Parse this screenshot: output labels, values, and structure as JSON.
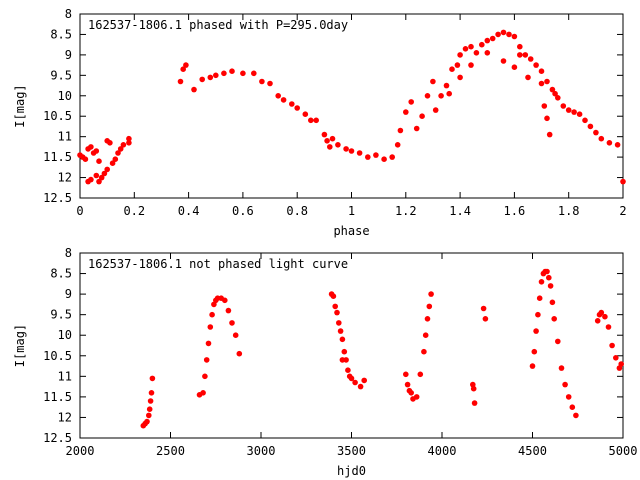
{
  "chart_data": [
    {
      "type": "scatter",
      "title": "162537-1806.1 phased with P=295.0day",
      "xlabel": "phase",
      "ylabel": "I[mag]",
      "xlim": [
        0,
        2
      ],
      "ylim": [
        12.5,
        8
      ],
      "y_inverted": true,
      "grid": false,
      "xticks": [
        "0",
        "0.2",
        "0.4",
        "0.6",
        "0.8",
        "1",
        "1.2",
        "1.4",
        "1.6",
        "1.8",
        "2"
      ],
      "yticks": [
        "8",
        "8.5",
        "9",
        "9.5",
        "10",
        "10.5",
        "11",
        "11.5",
        "12",
        "12.5"
      ],
      "marker_color": "#ff0000",
      "series": [
        {
          "points": [
            [
              0.0,
              11.45
            ],
            [
              0.01,
              11.5
            ],
            [
              0.02,
              11.55
            ],
            [
              0.03,
              11.3
            ],
            [
              0.04,
              11.25
            ],
            [
              0.05,
              11.4
            ],
            [
              0.06,
              11.35
            ],
            [
              0.07,
              11.6
            ],
            [
              0.03,
              12.1
            ],
            [
              0.04,
              12.05
            ],
            [
              0.06,
              11.95
            ],
            [
              0.07,
              12.1
            ],
            [
              0.08,
              12.0
            ],
            [
              0.09,
              11.9
            ],
            [
              0.1,
              11.8
            ],
            [
              0.1,
              11.1
            ],
            [
              0.11,
              11.15
            ],
            [
              0.12,
              11.65
            ],
            [
              0.13,
              11.55
            ],
            [
              0.14,
              11.4
            ],
            [
              0.15,
              11.3
            ],
            [
              0.16,
              11.2
            ],
            [
              0.18,
              11.05
            ],
            [
              0.18,
              11.15
            ],
            [
              0.37,
              9.65
            ],
            [
              0.38,
              9.35
            ],
            [
              0.39,
              9.25
            ],
            [
              0.42,
              9.85
            ],
            [
              0.45,
              9.6
            ],
            [
              0.48,
              9.55
            ],
            [
              0.5,
              9.5
            ],
            [
              0.53,
              9.45
            ],
            [
              0.56,
              9.4
            ],
            [
              0.6,
              9.45
            ],
            [
              0.64,
              9.45
            ],
            [
              0.67,
              9.65
            ],
            [
              0.7,
              9.7
            ],
            [
              0.73,
              10.0
            ],
            [
              0.75,
              10.1
            ],
            [
              0.78,
              10.2
            ],
            [
              0.8,
              10.3
            ],
            [
              0.83,
              10.45
            ],
            [
              0.85,
              10.6
            ],
            [
              0.87,
              10.6
            ],
            [
              0.9,
              10.95
            ],
            [
              0.91,
              11.1
            ],
            [
              0.92,
              11.25
            ],
            [
              0.93,
              11.05
            ],
            [
              0.95,
              11.2
            ],
            [
              0.98,
              11.3
            ],
            [
              1.0,
              11.35
            ],
            [
              1.03,
              11.4
            ],
            [
              1.06,
              11.5
            ],
            [
              1.09,
              11.45
            ],
            [
              1.12,
              11.55
            ],
            [
              1.15,
              11.5
            ],
            [
              1.17,
              11.2
            ],
            [
              1.18,
              10.85
            ],
            [
              1.2,
              10.4
            ],
            [
              1.22,
              10.15
            ],
            [
              1.24,
              10.8
            ],
            [
              1.26,
              10.5
            ],
            [
              1.28,
              10.0
            ],
            [
              1.3,
              9.65
            ],
            [
              1.31,
              10.35
            ],
            [
              1.33,
              10.0
            ],
            [
              1.35,
              9.75
            ],
            [
              1.37,
              9.35
            ],
            [
              1.39,
              9.25
            ],
            [
              1.4,
              9.0
            ],
            [
              1.42,
              8.85
            ],
            [
              1.44,
              8.8
            ],
            [
              1.46,
              8.95
            ],
            [
              1.48,
              8.75
            ],
            [
              1.5,
              8.65
            ],
            [
              1.52,
              8.6
            ],
            [
              1.54,
              8.5
            ],
            [
              1.56,
              8.45
            ],
            [
              1.58,
              8.5
            ],
            [
              1.6,
              8.55
            ],
            [
              1.62,
              8.8
            ],
            [
              1.64,
              9.0
            ],
            [
              1.66,
              9.1
            ],
            [
              1.68,
              9.25
            ],
            [
              1.7,
              9.4
            ],
            [
              1.72,
              9.65
            ],
            [
              1.74,
              9.85
            ],
            [
              1.76,
              10.05
            ],
            [
              1.78,
              10.25
            ],
            [
              1.8,
              10.35
            ],
            [
              1.82,
              10.4
            ],
            [
              1.84,
              10.45
            ],
            [
              1.86,
              10.6
            ],
            [
              1.88,
              10.75
            ],
            [
              1.9,
              10.9
            ],
            [
              1.92,
              11.05
            ],
            [
              1.95,
              11.15
            ],
            [
              1.98,
              11.2
            ],
            [
              2.0,
              12.1
            ],
            [
              1.5,
              8.95
            ],
            [
              1.56,
              9.15
            ],
            [
              1.6,
              9.3
            ],
            [
              1.65,
              9.55
            ],
            [
              1.7,
              9.7
            ],
            [
              1.71,
              10.25
            ],
            [
              1.72,
              10.55
            ],
            [
              1.73,
              10.95
            ],
            [
              1.36,
              9.95
            ],
            [
              1.4,
              9.55
            ],
            [
              1.44,
              9.25
            ],
            [
              1.62,
              9.0
            ],
            [
              1.75,
              9.95
            ]
          ]
        }
      ]
    },
    {
      "type": "scatter",
      "title": "162537-1806.1 not phased light curve",
      "xlabel": "hjd0",
      "ylabel": "I[mag]",
      "xlim": [
        2000,
        5000
      ],
      "ylim": [
        12.5,
        8
      ],
      "y_inverted": true,
      "grid": false,
      "xticks": [
        "2000",
        "2500",
        "3000",
        "3500",
        "4000",
        "4500",
        "5000"
      ],
      "yticks": [
        "8",
        "8.5",
        "9",
        "9.5",
        "10",
        "10.5",
        "11",
        "11.5",
        "12",
        "12.5"
      ],
      "marker_color": "#ff0000",
      "series": [
        {
          "points": [
            [
              2350,
              12.2
            ],
            [
              2360,
              12.15
            ],
            [
              2370,
              12.1
            ],
            [
              2380,
              11.95
            ],
            [
              2385,
              11.8
            ],
            [
              2390,
              11.6
            ],
            [
              2395,
              11.4
            ],
            [
              2400,
              11.05
            ],
            [
              2660,
              11.45
            ],
            [
              2680,
              11.4
            ],
            [
              2690,
              11.0
            ],
            [
              2700,
              10.6
            ],
            [
              2710,
              10.2
            ],
            [
              2720,
              9.8
            ],
            [
              2730,
              9.5
            ],
            [
              2740,
              9.25
            ],
            [
              2750,
              9.15
            ],
            [
              2760,
              9.1
            ],
            [
              2780,
              9.1
            ],
            [
              2800,
              9.15
            ],
            [
              2820,
              9.4
            ],
            [
              2840,
              9.7
            ],
            [
              2860,
              10.0
            ],
            [
              2880,
              10.45
            ],
            [
              3390,
              9.0
            ],
            [
              3400,
              9.05
            ],
            [
              3410,
              9.3
            ],
            [
              3420,
              9.45
            ],
            [
              3430,
              9.7
            ],
            [
              3440,
              9.9
            ],
            [
              3450,
              10.1
            ],
            [
              3460,
              10.4
            ],
            [
              3470,
              10.6
            ],
            [
              3480,
              10.85
            ],
            [
              3490,
              11.0
            ],
            [
              3500,
              11.05
            ],
            [
              3520,
              11.15
            ],
            [
              3550,
              11.25
            ],
            [
              3570,
              11.1
            ],
            [
              3450,
              10.6
            ],
            [
              3800,
              10.95
            ],
            [
              3810,
              11.2
            ],
            [
              3820,
              11.35
            ],
            [
              3830,
              11.4
            ],
            [
              3840,
              11.55
            ],
            [
              3860,
              11.5
            ],
            [
              3880,
              10.95
            ],
            [
              3900,
              10.4
            ],
            [
              3910,
              10.0
            ],
            [
              3920,
              9.6
            ],
            [
              3930,
              9.3
            ],
            [
              3940,
              9.0
            ],
            [
              4170,
              11.2
            ],
            [
              4175,
              11.3
            ],
            [
              4180,
              11.65
            ],
            [
              4230,
              9.35
            ],
            [
              4240,
              9.6
            ],
            [
              4500,
              10.75
            ],
            [
              4510,
              10.4
            ],
            [
              4520,
              9.9
            ],
            [
              4530,
              9.5
            ],
            [
              4540,
              9.1
            ],
            [
              4550,
              8.7
            ],
            [
              4560,
              8.5
            ],
            [
              4570,
              8.45
            ],
            [
              4580,
              8.45
            ],
            [
              4590,
              8.6
            ],
            [
              4600,
              8.8
            ],
            [
              4610,
              9.2
            ],
            [
              4620,
              9.6
            ],
            [
              4640,
              10.15
            ],
            [
              4660,
              10.8
            ],
            [
              4680,
              11.2
            ],
            [
              4700,
              11.5
            ],
            [
              4720,
              11.75
            ],
            [
              4740,
              11.95
            ],
            [
              4860,
              9.65
            ],
            [
              4870,
              9.5
            ],
            [
              4880,
              9.45
            ],
            [
              4900,
              9.55
            ],
            [
              4920,
              9.8
            ],
            [
              4940,
              10.25
            ],
            [
              4960,
              10.55
            ],
            [
              4980,
              10.8
            ],
            [
              4990,
              10.7
            ]
          ]
        }
      ]
    }
  ]
}
